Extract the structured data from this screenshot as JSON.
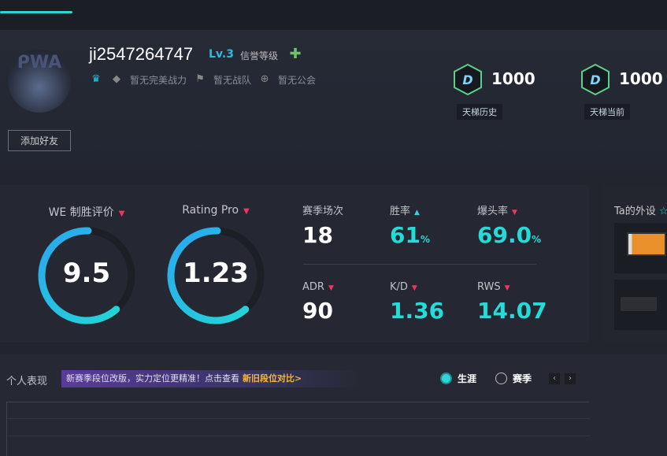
{
  "profile": {
    "username": "ji2547264747",
    "level": "Lv.3",
    "credit_label": "信誉等级",
    "power": "暂无完美战力",
    "team": "暂无战队",
    "guild": "暂无公会",
    "add_friend": "添加好友",
    "avatar_text": "PWA"
  },
  "ladder": [
    {
      "value": "1000",
      "label": "天梯历史",
      "rank": "D"
    },
    {
      "value": "1000",
      "label": "天梯当前",
      "rank": "D"
    }
  ],
  "gauges": [
    {
      "title": "WE 制胜评价",
      "value": "9.5",
      "fill": 0.62
    },
    {
      "title": "Rating Pro",
      "value": "1.23",
      "fill": 0.62
    }
  ],
  "stats": [
    {
      "label": "赛季场次",
      "value": "18",
      "unit": "",
      "trend": "none"
    },
    {
      "label": "胜率",
      "value": "61",
      "unit": "%",
      "trend": "up"
    },
    {
      "label": "爆头率",
      "value": "69.0",
      "unit": "%",
      "trend": "down"
    },
    {
      "label": "ADR",
      "value": "90",
      "unit": "",
      "trend": "down"
    },
    {
      "label": "K/D",
      "value": "1.36",
      "unit": "",
      "trend": "down"
    },
    {
      "label": "RWS",
      "value": "14.07",
      "unit": "",
      "trend": "down"
    }
  ],
  "gear": {
    "title": "Ta的外设",
    "title_suffix": "☆"
  },
  "performance": {
    "title": "个人表现",
    "banner": "新赛季段位改版，实力定位更精准！点击查看",
    "banner_link": "新旧段位对比>",
    "radio_career": "生涯",
    "radio_season": "赛季",
    "prev": "‹",
    "next": "›"
  },
  "colors": {
    "accent": "#2fd4d6",
    "down": "#f0365f",
    "banner_link": "#f6b73c"
  }
}
